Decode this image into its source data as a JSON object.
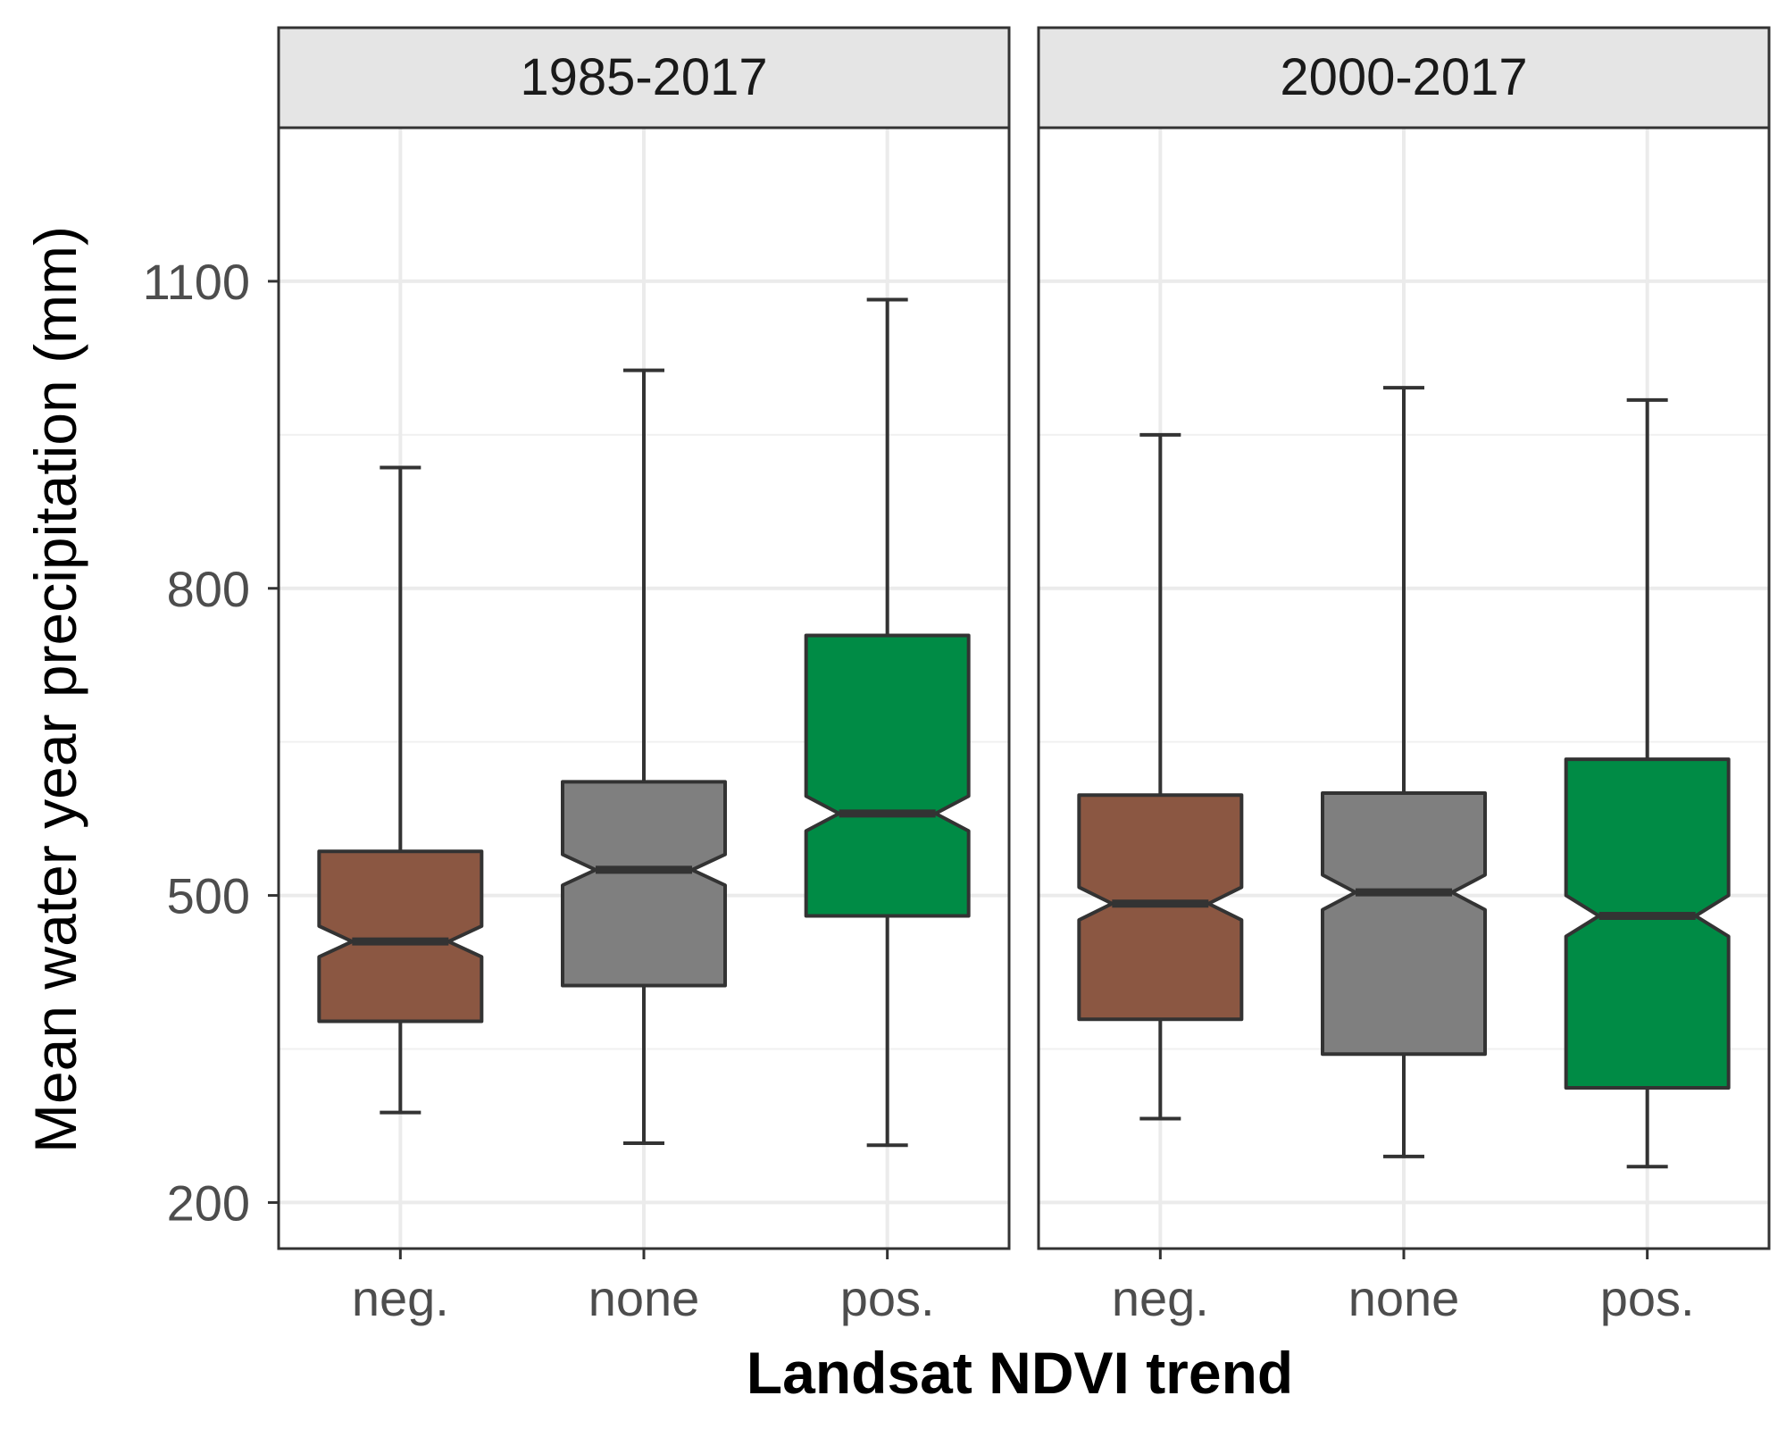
{
  "chart_data": {
    "type": "box",
    "xlabel": "Landsat NDVI trend",
    "ylabel": "Mean water year precipitation (mm)",
    "y_ticks": [
      200,
      500,
      800,
      1100
    ],
    "y_minor": [
      350,
      650,
      950
    ],
    "ylim": [
      155,
      1250
    ],
    "categories": [
      "neg.",
      "none",
      "pos."
    ],
    "notched": true,
    "colors": {
      "neg.": "#8B5742",
      "none": "#7F7F7F",
      "pos.": "#008B45"
    },
    "grid": true,
    "panels": [
      {
        "title": "1985-2017",
        "boxes": [
          {
            "category": "neg.",
            "min": 288,
            "q1": 377,
            "median": 455,
            "q3": 543,
            "max": 918,
            "notch_low": 440,
            "notch_high": 470
          },
          {
            "category": "none",
            "min": 258,
            "q1": 412,
            "median": 525,
            "q3": 611,
            "max": 1013,
            "notch_low": 510,
            "notch_high": 540
          },
          {
            "category": "pos.",
            "min": 256,
            "q1": 480,
            "median": 580,
            "q3": 754,
            "max": 1082,
            "notch_low": 563,
            "notch_high": 597
          }
        ]
      },
      {
        "title": "2000-2017",
        "boxes": [
          {
            "category": "neg.",
            "min": 282,
            "q1": 379,
            "median": 492,
            "q3": 598,
            "max": 950,
            "notch_low": 476,
            "notch_high": 508
          },
          {
            "category": "none",
            "min": 245,
            "q1": 345,
            "median": 503,
            "q3": 600,
            "max": 996,
            "notch_low": 486,
            "notch_high": 520
          },
          {
            "category": "pos.",
            "min": 235,
            "q1": 312,
            "median": 480,
            "q3": 633,
            "max": 984,
            "notch_low": 460,
            "notch_high": 500
          }
        ]
      }
    ]
  }
}
